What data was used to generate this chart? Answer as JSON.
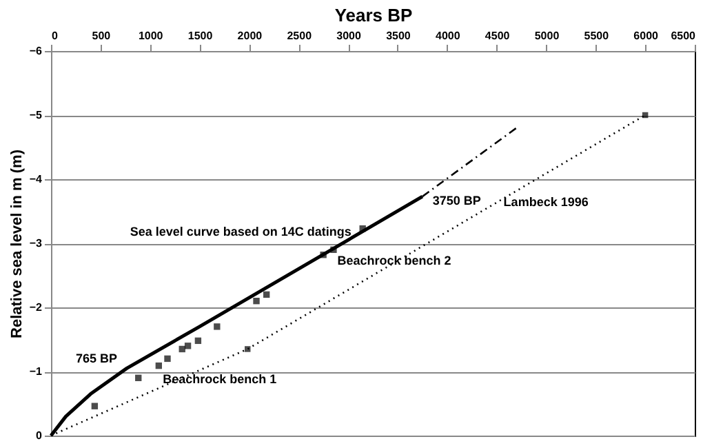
{
  "chart_data": {
    "type": "line",
    "xlabel": "Years BP",
    "ylabel": "Relative sea level in m (m)",
    "xlim": [
      0,
      6500
    ],
    "xticks": [
      0,
      500,
      1000,
      1500,
      2000,
      2500,
      3000,
      3500,
      4000,
      4500,
      5000,
      5500,
      6000,
      6500
    ],
    "ylim": [
      0,
      -6
    ],
    "yticks": [
      0,
      -1,
      -2,
      -3,
      -4,
      -5,
      -6
    ],
    "grid": "y",
    "series": [
      {
        "name": "Sea level curve based on 14C datings",
        "color": "#000000",
        "line_style": "solid",
        "x": [
          0,
          150,
          400,
          765,
          1500,
          2500,
          3750
        ],
        "values": [
          0,
          -0.3,
          -0.65,
          -1.05,
          -1.7,
          -2.6,
          -3.73
        ]
      },
      {
        "color": "#000000",
        "line_style": "dashed",
        "x": [
          3750,
          4700
        ],
        "values": [
          -3.73,
          -4.8
        ]
      },
      {
        "name": "Lambeck 1996",
        "color": "#000000",
        "line_style": "dotted",
        "marker": "square",
        "x": [
          0,
          1985,
          6000
        ],
        "values": [
          0,
          -1.35,
          -5
        ]
      },
      {
        "name": "Beachrock bench 1",
        "type": "scatter",
        "color": "#000000",
        "marker": "square",
        "x": [
          441,
          882,
          1088,
          1176,
          1324,
          1382,
          1485,
          1676
        ],
        "values": [
          -0.46,
          -0.9,
          -1.09,
          -1.2,
          -1.35,
          -1.4,
          -1.48,
          -1.7
        ]
      },
      {
        "name": "Beachrock bench 2",
        "type": "scatter",
        "color": "#000000",
        "marker": "square",
        "x": [
          2074,
          2176,
          2750,
          2853,
          3147
        ],
        "values": [
          -2.1,
          -2.2,
          -2.82,
          -2.9,
          -3.23
        ]
      }
    ],
    "annotations": [
      {
        "text": "765 BP",
        "x": 765,
        "y": -1.05
      },
      {
        "text": "3750 BP",
        "x": 3750,
        "y": -3.73
      }
    ]
  }
}
